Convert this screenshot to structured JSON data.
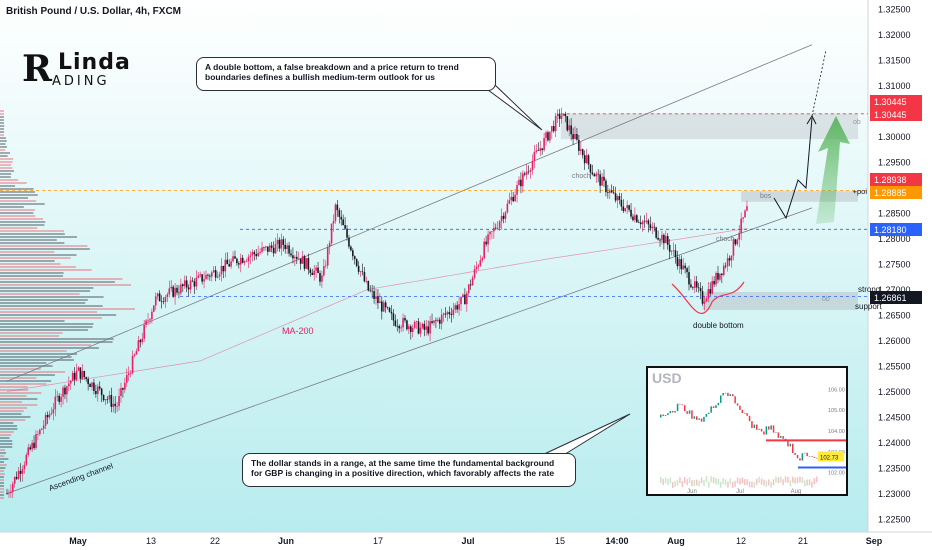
{
  "title": "British Pound / U.S. Dollar, 4h, FXCM",
  "logo": {
    "mark": "R",
    "line1": "Linda",
    "line2": "ADING"
  },
  "callouts": {
    "top": "A double bottom, a false breakdown and a price return to trend boundaries defines a bullish medium-term outlook for us",
    "bottom": "The dollar stands in a range, at the same time the fundamental background for GBP is changing in a positive direction, which favorably affects the rate"
  },
  "annotations": {
    "ma200": "MA-200",
    "channel": "Ascending channel",
    "double_bottom": "double bottom",
    "choch1": "choch",
    "choch2": "choch",
    "bos": "bos",
    "poi": "+poi",
    "strong": "strong",
    "support": "support",
    "ob1": "ob",
    "ob2": "ob"
  },
  "colors": {
    "background_top": "#ffffff",
    "background_bottom": "#b7ecee",
    "up_candle": "#e91e63",
    "down_candle": "#131722",
    "badge_red": "#f23645",
    "badge_orange": "#ff9800",
    "badge_blue": "#2962ff",
    "arrow_green": "#4caf50"
  },
  "chart_data": {
    "type": "line",
    "title": "British Pound / U.S. Dollar, 4h, FXCM",
    "xlabel": "",
    "ylabel": "",
    "ylim": [
      1.2225,
      1.3275
    ],
    "y_ticks": [
      "1.32500",
      "1.32000",
      "1.31500",
      "1.31000",
      "1.30500",
      "1.30000",
      "1.29500",
      "1.29000",
      "1.28500",
      "1.28000",
      "1.27500",
      "1.27000",
      "1.26500",
      "1.26000",
      "1.25500",
      "1.25000",
      "1.24500",
      "1.24000",
      "1.23500",
      "1.23000",
      "1.22500"
    ],
    "x_ticks": [
      "May",
      "13",
      "22",
      "Jun",
      "17",
      "Jul",
      "15",
      "14:00",
      "Aug",
      "12",
      "21",
      "Sep"
    ],
    "price_badges": [
      {
        "value": "1.30445",
        "color": "#f23645"
      },
      {
        "value": "1.30445",
        "color": "#f23645"
      },
      {
        "value": "1.28938",
        "color": "#f23645"
      },
      {
        "value": "1.28885",
        "color": "#ff9800"
      },
      {
        "value": "1.28180",
        "color": "#2962ff"
      },
      {
        "value": "1.26861",
        "color": "#131722"
      }
    ],
    "levels": [
      {
        "name": "ob-top",
        "value": 1.30445
      },
      {
        "name": "poi",
        "value": 1.28938
      },
      {
        "name": "choch",
        "value": 1.2818
      },
      {
        "name": "strong-support",
        "value": 1.26861
      }
    ],
    "series": [
      {
        "name": "GBPUSD",
        "points": [
          {
            "d": "Apr 22",
            "v": 1.23
          },
          {
            "d": "Apr 30",
            "v": 1.249
          },
          {
            "d": "May 3",
            "v": 1.254
          },
          {
            "d": "May 9",
            "v": 1.247
          },
          {
            "d": "May 15",
            "v": 1.268
          },
          {
            "d": "May 22",
            "v": 1.272
          },
          {
            "d": "May 28",
            "v": 1.276
          },
          {
            "d": "Jun 4",
            "v": 1.279
          },
          {
            "d": "Jun 10",
            "v": 1.272
          },
          {
            "d": "Jun 12",
            "v": 1.286
          },
          {
            "d": "Jun 17",
            "v": 1.27
          },
          {
            "d": "Jun 21",
            "v": 1.264
          },
          {
            "d": "Jun 26",
            "v": 1.262
          },
          {
            "d": "Jul 2",
            "v": 1.268
          },
          {
            "d": "Jul 5",
            "v": 1.278
          },
          {
            "d": "Jul 12",
            "v": 1.294
          },
          {
            "d": "Jul 17",
            "v": 1.3045
          },
          {
            "d": "Jul 22",
            "v": 1.293
          },
          {
            "d": "Jul 26",
            "v": 1.287
          },
          {
            "d": "Aug 2",
            "v": 1.28
          },
          {
            "d": "Aug 5",
            "v": 1.274
          },
          {
            "d": "Aug 8",
            "v": 1.268
          },
          {
            "d": "Aug 12",
            "v": 1.276
          },
          {
            "d": "Aug 15",
            "v": 1.286
          }
        ]
      },
      {
        "name": "MA-200",
        "points": [
          {
            "d": "Apr 22",
            "v": 1.25
          },
          {
            "d": "May 22",
            "v": 1.256
          },
          {
            "d": "Jun 17",
            "v": 1.27
          },
          {
            "d": "Jul 15",
            "v": 1.276
          },
          {
            "d": "Aug 5",
            "v": 1.28
          },
          {
            "d": "Aug 15",
            "v": 1.282
          }
        ]
      }
    ],
    "channel": {
      "upper": [
        {
          "d": "Apr 22",
          "v": 1.252
        },
        {
          "d": "Aug 25",
          "v": 1.318
        }
      ],
      "lower": [
        {
          "d": "Apr 22",
          "v": 1.23
        },
        {
          "d": "Aug 25",
          "v": 1.286
        }
      ]
    },
    "inset": {
      "title": "USD",
      "type": "bar",
      "ylim": [
        101.5,
        106.5
      ],
      "y_ticks": [
        "106.00",
        "105.00",
        "104.00",
        "103.00",
        "102.00"
      ],
      "x_ticks": [
        "Jun",
        "Jul",
        "Aug"
      ],
      "last": "102.73"
    }
  }
}
